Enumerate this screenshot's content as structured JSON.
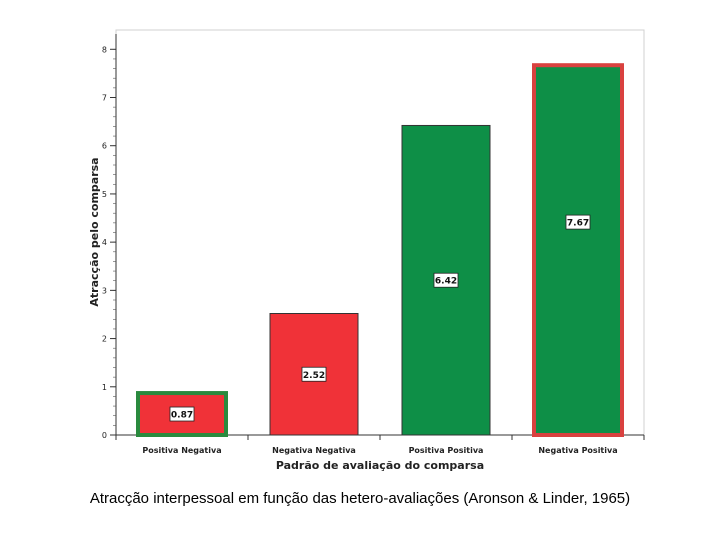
{
  "caption": "Atracção interpessoal em função das hetero-avaliações (Aronson & Linder, 1965)",
  "chart_data": {
    "type": "bar",
    "title": "",
    "xlabel": "Padrão de avaliação do comparsa",
    "ylabel": "Atracção pelo comparsa",
    "ylim": [
      0,
      8.4
    ],
    "yticks": [
      0,
      1,
      2,
      3,
      4,
      5,
      6,
      7,
      8
    ],
    "grid": false,
    "categories": [
      "Positiva Negativa",
      "Negativa Negativa",
      "Positiva Positiva",
      "Negativa Positiva"
    ],
    "values": [
      0.87,
      2.52,
      6.42,
      7.67
    ],
    "data_labels": [
      "0.87",
      "2.52",
      "6.42",
      "7.67"
    ],
    "bar_colors": [
      "#f03238",
      "#f03238",
      "#0e8f47",
      "#0e8f47"
    ],
    "bar_outline_colors": [
      "#2a8a3e",
      "#333333",
      "#333333",
      "#d9413f"
    ],
    "highlighted": [
      true,
      false,
      false,
      true
    ]
  }
}
